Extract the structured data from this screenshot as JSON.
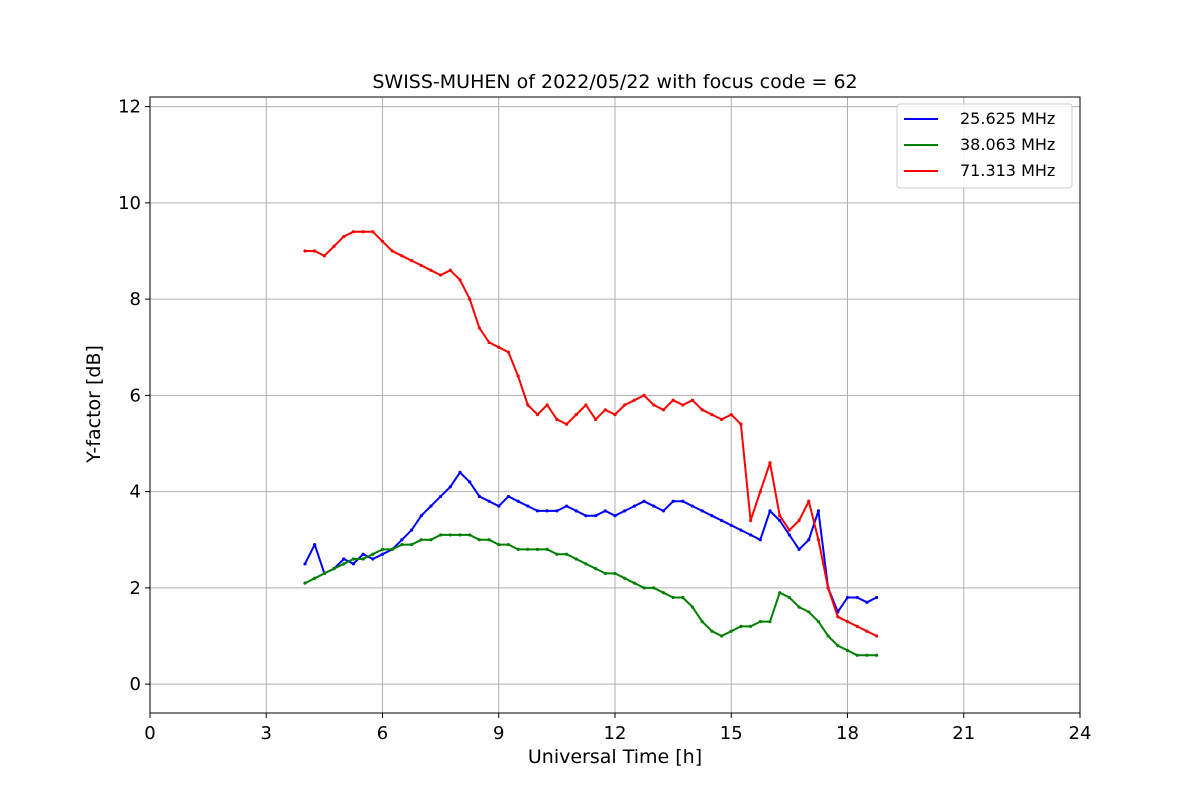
{
  "chart_data": {
    "type": "line",
    "title": "SWISS-MUHEN of 2022/05/22 with focus code = 62",
    "xlabel": "Universal Time [h]",
    "ylabel": "Y-factor [dB]",
    "xlim": [
      0,
      24
    ],
    "ylim": [
      -0.6,
      12.2
    ],
    "xticks": [
      0,
      3,
      6,
      9,
      12,
      15,
      18,
      21,
      24
    ],
    "yticks": [
      0,
      2,
      4,
      6,
      8,
      10,
      12
    ],
    "grid": true,
    "legend_position": "top-right",
    "series": [
      {
        "name": "25.625 MHz",
        "color": "#0000ff",
        "points": [
          [
            4.0,
            2.5
          ],
          [
            4.25,
            2.9
          ],
          [
            4.5,
            2.3
          ],
          [
            4.75,
            2.4
          ],
          [
            5.0,
            2.6
          ],
          [
            5.25,
            2.5
          ],
          [
            5.5,
            2.7
          ],
          [
            5.75,
            2.6
          ],
          [
            6.0,
            2.7
          ],
          [
            6.25,
            2.8
          ],
          [
            6.5,
            3.0
          ],
          [
            6.75,
            3.2
          ],
          [
            7.0,
            3.5
          ],
          [
            7.25,
            3.7
          ],
          [
            7.5,
            3.9
          ],
          [
            7.75,
            4.1
          ],
          [
            8.0,
            4.4
          ],
          [
            8.25,
            4.2
          ],
          [
            8.5,
            3.9
          ],
          [
            8.75,
            3.8
          ],
          [
            9.0,
            3.7
          ],
          [
            9.25,
            3.9
          ],
          [
            9.5,
            3.8
          ],
          [
            9.75,
            3.7
          ],
          [
            10.0,
            3.6
          ],
          [
            10.25,
            3.6
          ],
          [
            10.5,
            3.6
          ],
          [
            10.75,
            3.7
          ],
          [
            11.0,
            3.6
          ],
          [
            11.25,
            3.5
          ],
          [
            11.5,
            3.5
          ],
          [
            11.75,
            3.6
          ],
          [
            12.0,
            3.5
          ],
          [
            12.25,
            3.6
          ],
          [
            12.5,
            3.7
          ],
          [
            12.75,
            3.8
          ],
          [
            13.0,
            3.7
          ],
          [
            13.25,
            3.6
          ],
          [
            13.5,
            3.8
          ],
          [
            13.75,
            3.8
          ],
          [
            14.0,
            3.7
          ],
          [
            14.25,
            3.6
          ],
          [
            14.5,
            3.5
          ],
          [
            14.75,
            3.4
          ],
          [
            15.0,
            3.3
          ],
          [
            15.25,
            3.2
          ],
          [
            15.5,
            3.1
          ],
          [
            15.75,
            3.0
          ],
          [
            16.0,
            3.6
          ],
          [
            16.25,
            3.4
          ],
          [
            16.5,
            3.1
          ],
          [
            16.75,
            2.8
          ],
          [
            17.0,
            3.0
          ],
          [
            17.25,
            3.6
          ],
          [
            17.5,
            2.0
          ],
          [
            17.75,
            1.5
          ],
          [
            18.0,
            1.8
          ],
          [
            18.25,
            1.8
          ],
          [
            18.5,
            1.7
          ],
          [
            18.75,
            1.8
          ]
        ]
      },
      {
        "name": "38.063 MHz",
        "color": "#008000",
        "points": [
          [
            4.0,
            2.1
          ],
          [
            4.25,
            2.2
          ],
          [
            4.5,
            2.3
          ],
          [
            4.75,
            2.4
          ],
          [
            5.0,
            2.5
          ],
          [
            5.25,
            2.6
          ],
          [
            5.5,
            2.6
          ],
          [
            5.75,
            2.7
          ],
          [
            6.0,
            2.8
          ],
          [
            6.25,
            2.8
          ],
          [
            6.5,
            2.9
          ],
          [
            6.75,
            2.9
          ],
          [
            7.0,
            3.0
          ],
          [
            7.25,
            3.0
          ],
          [
            7.5,
            3.1
          ],
          [
            7.75,
            3.1
          ],
          [
            8.0,
            3.1
          ],
          [
            8.25,
            3.1
          ],
          [
            8.5,
            3.0
          ],
          [
            8.75,
            3.0
          ],
          [
            9.0,
            2.9
          ],
          [
            9.25,
            2.9
          ],
          [
            9.5,
            2.8
          ],
          [
            9.75,
            2.8
          ],
          [
            10.0,
            2.8
          ],
          [
            10.25,
            2.8
          ],
          [
            10.5,
            2.7
          ],
          [
            10.75,
            2.7
          ],
          [
            11.0,
            2.6
          ],
          [
            11.25,
            2.5
          ],
          [
            11.5,
            2.4
          ],
          [
            11.75,
            2.3
          ],
          [
            12.0,
            2.3
          ],
          [
            12.25,
            2.2
          ],
          [
            12.5,
            2.1
          ],
          [
            12.75,
            2.0
          ],
          [
            13.0,
            2.0
          ],
          [
            13.25,
            1.9
          ],
          [
            13.5,
            1.8
          ],
          [
            13.75,
            1.8
          ],
          [
            14.0,
            1.6
          ],
          [
            14.25,
            1.3
          ],
          [
            14.5,
            1.1
          ],
          [
            14.75,
            1.0
          ],
          [
            15.0,
            1.1
          ],
          [
            15.25,
            1.2
          ],
          [
            15.5,
            1.2
          ],
          [
            15.75,
            1.3
          ],
          [
            16.0,
            1.3
          ],
          [
            16.25,
            1.9
          ],
          [
            16.5,
            1.8
          ],
          [
            16.75,
            1.6
          ],
          [
            17.0,
            1.5
          ],
          [
            17.25,
            1.3
          ],
          [
            17.5,
            1.0
          ],
          [
            17.75,
            0.8
          ],
          [
            18.0,
            0.7
          ],
          [
            18.25,
            0.6
          ],
          [
            18.5,
            0.6
          ],
          [
            18.75,
            0.6
          ]
        ]
      },
      {
        "name": "71.313 MHz",
        "color": "#ff0000",
        "points": [
          [
            4.0,
            9.0
          ],
          [
            4.25,
            9.0
          ],
          [
            4.5,
            8.9
          ],
          [
            4.75,
            9.1
          ],
          [
            5.0,
            9.3
          ],
          [
            5.25,
            9.4
          ],
          [
            5.5,
            9.4
          ],
          [
            5.75,
            9.4
          ],
          [
            6.0,
            9.2
          ],
          [
            6.25,
            9.0
          ],
          [
            6.5,
            8.9
          ],
          [
            6.75,
            8.8
          ],
          [
            7.0,
            8.7
          ],
          [
            7.25,
            8.6
          ],
          [
            7.5,
            8.5
          ],
          [
            7.75,
            8.6
          ],
          [
            8.0,
            8.4
          ],
          [
            8.25,
            8.0
          ],
          [
            8.5,
            7.4
          ],
          [
            8.75,
            7.1
          ],
          [
            9.0,
            7.0
          ],
          [
            9.25,
            6.9
          ],
          [
            9.5,
            6.4
          ],
          [
            9.75,
            5.8
          ],
          [
            10.0,
            5.6
          ],
          [
            10.25,
            5.8
          ],
          [
            10.5,
            5.5
          ],
          [
            10.75,
            5.4
          ],
          [
            11.0,
            5.6
          ],
          [
            11.25,
            5.8
          ],
          [
            11.5,
            5.5
          ],
          [
            11.75,
            5.7
          ],
          [
            12.0,
            5.6
          ],
          [
            12.25,
            5.8
          ],
          [
            12.5,
            5.9
          ],
          [
            12.75,
            6.0
          ],
          [
            13.0,
            5.8
          ],
          [
            13.25,
            5.7
          ],
          [
            13.5,
            5.9
          ],
          [
            13.75,
            5.8
          ],
          [
            14.0,
            5.9
          ],
          [
            14.25,
            5.7
          ],
          [
            14.5,
            5.6
          ],
          [
            14.75,
            5.5
          ],
          [
            15.0,
            5.6
          ],
          [
            15.25,
            5.4
          ],
          [
            15.5,
            3.4
          ],
          [
            15.75,
            4.0
          ],
          [
            16.0,
            4.6
          ],
          [
            16.25,
            3.5
          ],
          [
            16.5,
            3.2
          ],
          [
            16.75,
            3.4
          ],
          [
            17.0,
            3.8
          ],
          [
            17.25,
            3.0
          ],
          [
            17.5,
            2.0
          ],
          [
            17.75,
            1.4
          ],
          [
            18.0,
            1.3
          ],
          [
            18.25,
            1.2
          ],
          [
            18.5,
            1.1
          ],
          [
            18.75,
            1.0
          ]
        ]
      }
    ]
  }
}
